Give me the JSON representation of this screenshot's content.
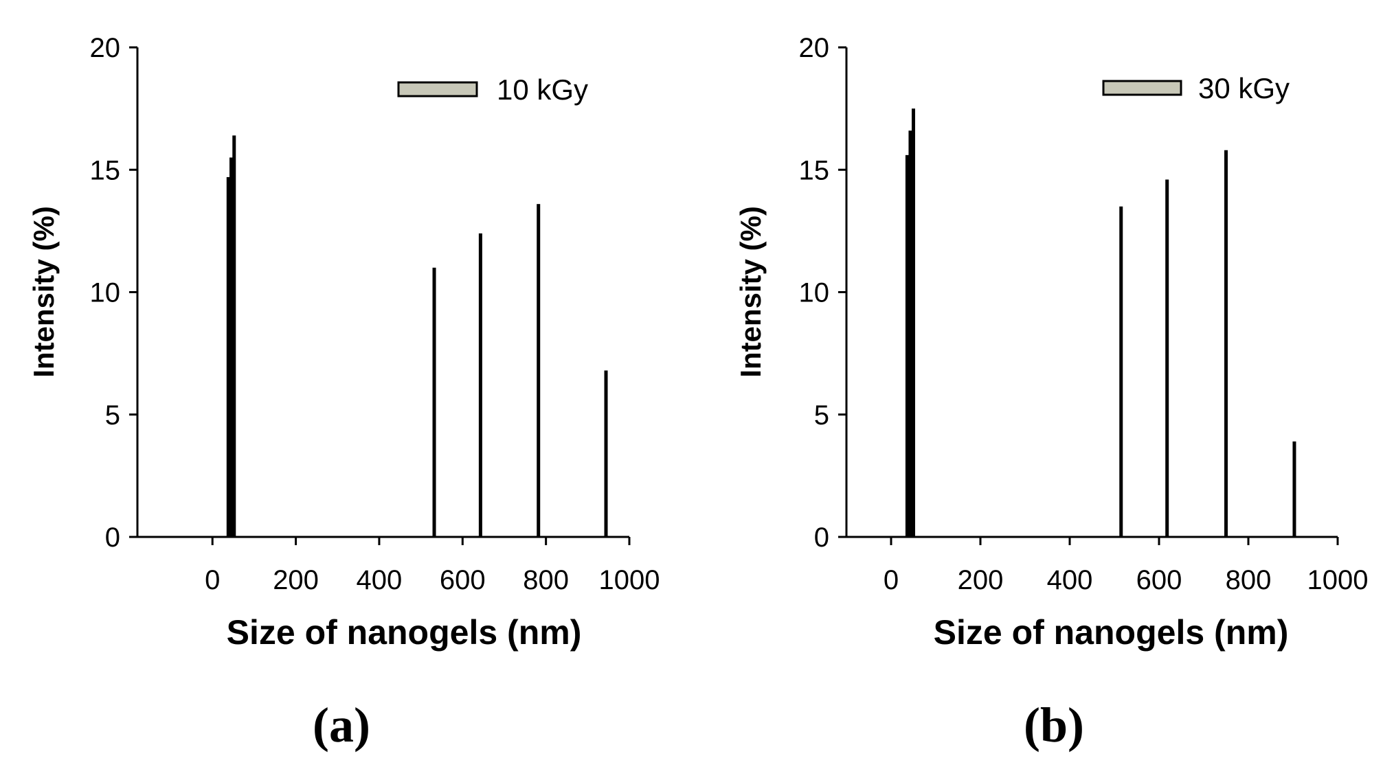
{
  "colors": {
    "bar": "#000000",
    "axis": "#000000",
    "legend_fill": "#c8c8b8"
  },
  "chart_data": [
    {
      "type": "bar",
      "panel_label": "(a)",
      "title": "",
      "xlabel": "Size of nanogels (nm)",
      "ylabel": "Intensity (%)",
      "xlim": [
        -180,
        1000
      ],
      "ylim": [
        0,
        20
      ],
      "xticks": [
        0,
        200,
        400,
        600,
        800,
        1000
      ],
      "yticks": [
        0,
        5,
        10,
        15,
        20
      ],
      "grid": false,
      "legend_position": "top-right",
      "series": [
        {
          "name": "10 kGy",
          "x": [
            38,
            45,
            52,
            532,
            643,
            782,
            944
          ],
          "values": [
            14.7,
            15.5,
            16.4,
            11.0,
            12.4,
            13.6,
            6.8
          ]
        }
      ]
    },
    {
      "type": "bar",
      "panel_label": "(b)",
      "title": "",
      "xlabel": "Size of nanogels (nm)",
      "ylabel": "Intensity (%)",
      "xlim": [
        -100,
        1000
      ],
      "ylim": [
        0,
        20
      ],
      "xticks": [
        0,
        200,
        400,
        600,
        800,
        1000
      ],
      "yticks": [
        0,
        5,
        10,
        15,
        20
      ],
      "grid": false,
      "legend_position": "top-right",
      "series": [
        {
          "name": "30 kGy",
          "x": [
            36,
            43,
            50,
            515,
            618,
            750,
            903
          ],
          "values": [
            15.6,
            16.6,
            17.5,
            13.5,
            14.6,
            15.8,
            3.9
          ]
        }
      ]
    }
  ]
}
